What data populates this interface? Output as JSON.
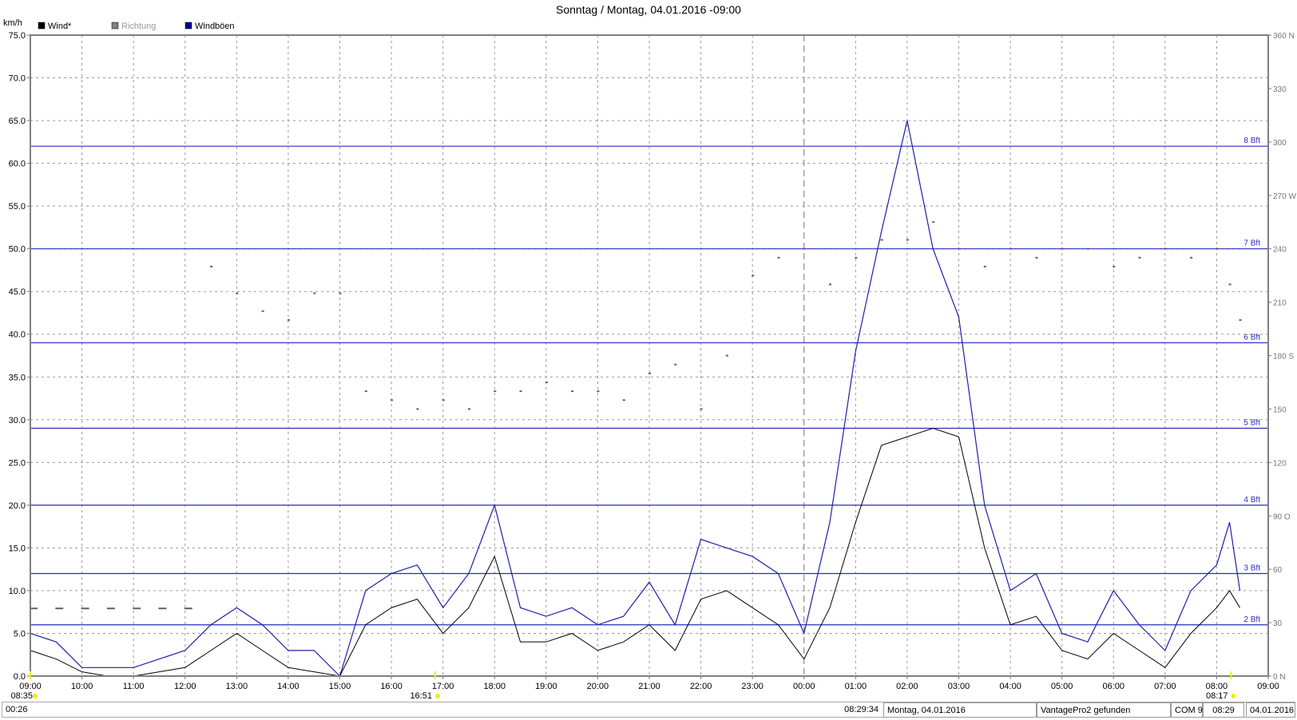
{
  "chart_data": {
    "type": "line",
    "title": "Sonntag / Montag, 04.01.2016  -09:00",
    "ylabel": "km/h",
    "ylim": [
      0,
      75
    ],
    "yticks": [
      "0.0",
      "5.0",
      "10.0",
      "15.0",
      "20.0",
      "25.0",
      "30.0",
      "35.0",
      "40.0",
      "45.0",
      "50.0",
      "55.0",
      "60.0",
      "65.0",
      "70.0",
      "75.0"
    ],
    "y2lim": [
      0,
      360
    ],
    "y2ticks": [
      "0 N",
      "30",
      "60",
      "90 O",
      "120",
      "150",
      "180 S",
      "210",
      "240",
      "270 W",
      "300",
      "330",
      "360 N"
    ],
    "xticks": [
      "09:00",
      "10:00",
      "11:00",
      "12:00",
      "13:00",
      "14:00",
      "15:00",
      "16:00",
      "17:00",
      "18:00",
      "19:00",
      "20:00",
      "21:00",
      "22:00",
      "23:00",
      "00:00",
      "01:00",
      "02:00",
      "03:00",
      "04:00",
      "05:00",
      "06:00",
      "07:00",
      "08:00",
      "09:00"
    ],
    "grid": true,
    "legend": [
      {
        "label": "Wind*",
        "color": "#000000"
      },
      {
        "label": "Richtung",
        "color": "#808080"
      },
      {
        "label": "Windböen",
        "color": "#00008b"
      }
    ],
    "legend_placement": "top-left",
    "beaufort_lines": [
      {
        "label": "2 Bft",
        "value": 6
      },
      {
        "label": "3 Bft",
        "value": 12
      },
      {
        "label": "4 Bft",
        "value": 20
      },
      {
        "label": "5 Bft",
        "value": 29
      },
      {
        "label": "6 Bft",
        "value": 39
      },
      {
        "label": "7 Bft",
        "value": 50
      },
      {
        "label": "8 Bft",
        "value": 62
      }
    ],
    "midnight_marker": "00:00",
    "x_hours_from_start": [
      0,
      0.5,
      1,
      1.5,
      2,
      2.5,
      3,
      3.5,
      4,
      4.5,
      5,
      5.5,
      6,
      6.5,
      7,
      7.5,
      8,
      8.5,
      9,
      9.5,
      10,
      10.5,
      11,
      11.5,
      12,
      12.5,
      13,
      13.5,
      14,
      14.5,
      15,
      15.5,
      16,
      16.5,
      17,
      17.5,
      18,
      18.5,
      19,
      19.5,
      20,
      20.5,
      21,
      21.5,
      22,
      22.5,
      23,
      23.25,
      23.45
    ],
    "series": [
      {
        "name": "Windböen",
        "values": [
          5,
          4,
          1,
          1,
          1,
          2,
          3,
          6,
          8,
          6,
          3,
          3,
          0,
          10,
          12,
          13,
          8,
          12,
          20,
          8,
          7,
          8,
          6,
          7,
          11,
          6,
          16,
          15,
          14,
          12,
          5,
          18,
          38,
          52,
          65,
          50,
          42,
          20,
          10,
          12,
          5,
          4,
          10,
          6,
          3,
          10,
          13,
          18,
          10
        ]
      },
      {
        "name": "Wind*",
        "values": [
          3,
          2,
          0.5,
          0,
          0,
          0.5,
          1,
          3,
          5,
          3,
          1,
          0.5,
          0,
          6,
          8,
          9,
          5,
          8,
          14,
          4,
          4,
          5,
          3,
          4,
          6,
          3,
          9,
          10,
          8,
          6,
          2,
          8,
          18,
          27,
          28,
          29,
          28,
          15,
          6,
          7,
          3,
          2,
          5,
          3,
          1,
          5,
          8,
          10,
          8
        ]
      },
      {
        "name": "Richtung",
        "values": [
          38,
          38,
          38,
          38,
          38,
          38,
          38,
          230,
          215,
          205,
          200,
          215,
          215,
          160,
          155,
          150,
          155,
          150,
          160,
          160,
          165,
          160,
          160,
          155,
          170,
          175,
          150,
          180,
          225,
          235,
          240,
          220,
          235,
          245,
          245,
          255,
          240,
          230,
          240,
          235,
          240,
          240,
          230,
          235,
          240,
          235,
          240,
          220,
          200
        ]
      }
    ]
  },
  "markers": [
    {
      "label": "08:35"
    },
    {
      "label": "16:51"
    },
    {
      "label": "08:17"
    }
  ],
  "statusbar": {
    "elapsed": "00:26",
    "time": "08:29:34",
    "date_long": "Montag, 04.01.2016",
    "device": "VantagePro2 gefunden",
    "port": "COM 9",
    "clock": "08:29",
    "date": "04.01.2016"
  },
  "colors": {
    "gust": "#1f1fa8",
    "wind": "#000000",
    "direction": "#606060",
    "bft": "#2b2bc0",
    "marker": "#f0f000"
  }
}
